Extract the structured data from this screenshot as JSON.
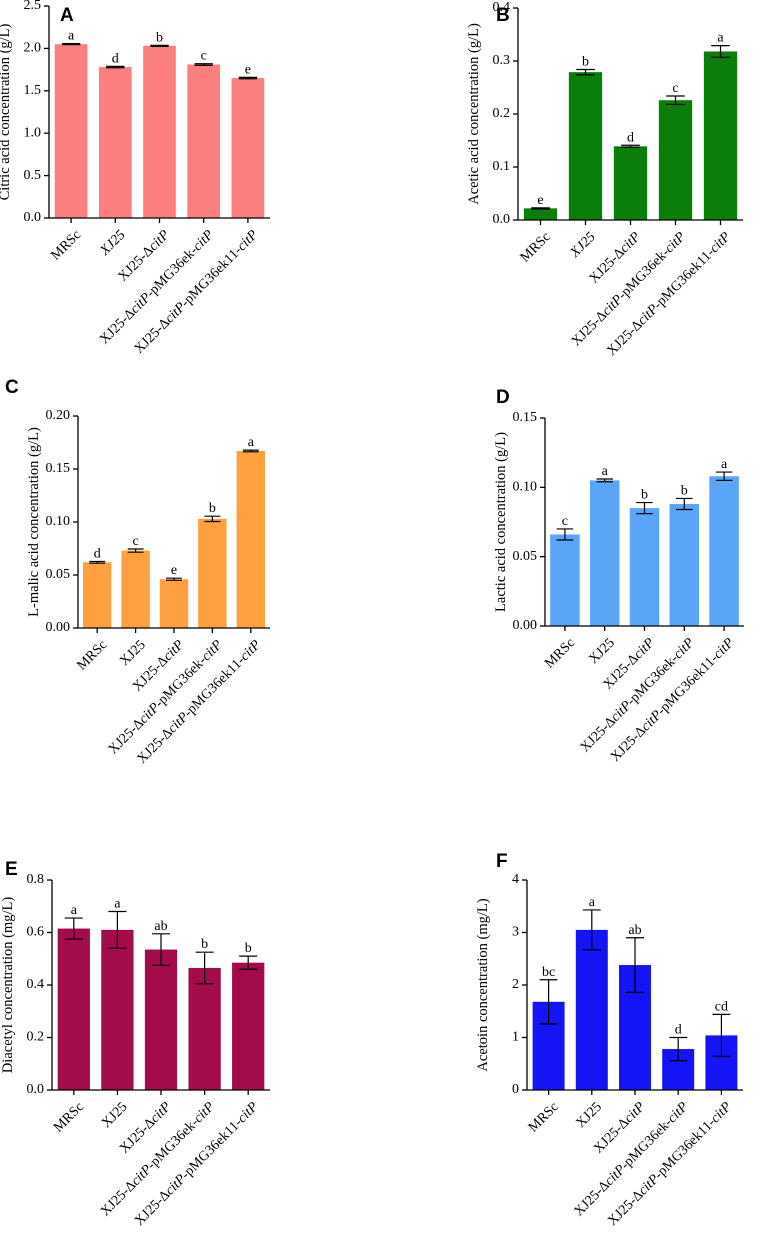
{
  "chart_data": [
    {
      "panel": "A",
      "type": "bar",
      "categories": [
        [
          {
            "t": "MRSc",
            "i": false
          }
        ],
        [
          {
            "t": "XJ25",
            "i": true
          }
        ],
        [
          {
            "t": "XJ25-Δ",
            "i": false
          },
          {
            "t": "citP",
            "i": true
          }
        ],
        [
          {
            "t": "XJ25-Δ",
            "i": false
          },
          {
            "t": "citP",
            "i": true
          },
          {
            "t": "-pMG36ek-",
            "i": false
          },
          {
            "t": "citP",
            "i": true
          }
        ],
        [
          {
            "t": "XJ25-Δ",
            "i": false
          },
          {
            "t": "citP",
            "i": true
          },
          {
            "t": "-pMG36ek11-",
            "i": false
          },
          {
            "t": "citP",
            "i": true
          }
        ]
      ],
      "values": [
        2.05,
        1.78,
        2.03,
        1.81,
        1.65
      ],
      "errors": [
        0.006,
        0.008,
        0.006,
        0.009,
        0.008
      ],
      "letters": [
        "a",
        "d",
        "b",
        "c",
        "e"
      ],
      "ylabel": "Citric acid concentration (g/L)",
      "ylim": [
        0,
        2.5
      ],
      "yticks": [
        "0.0",
        "0.5",
        "1.0",
        "1.5",
        "2.0",
        "2.5"
      ],
      "color": "#fb7f7f"
    },
    {
      "panel": "B",
      "type": "bar",
      "categories": [
        [
          {
            "t": "MRSc",
            "i": false
          }
        ],
        [
          {
            "t": "XJ25",
            "i": true
          }
        ],
        [
          {
            "t": "XJ25-Δ",
            "i": false
          },
          {
            "t": "citP",
            "i": true
          }
        ],
        [
          {
            "t": "XJ25-Δ",
            "i": false
          },
          {
            "t": "citP",
            "i": true
          },
          {
            "t": "-pMG36ek-",
            "i": false
          },
          {
            "t": "citP",
            "i": true
          }
        ],
        [
          {
            "t": "XJ25-Δ",
            "i": false
          },
          {
            "t": "citP",
            "i": true
          },
          {
            "t": "-pMG36ek11-",
            "i": false
          },
          {
            "t": "citP",
            "i": true
          }
        ]
      ],
      "values": [
        0.022,
        0.279,
        0.139,
        0.226,
        0.318
      ],
      "errors": [
        0.001,
        0.005,
        0.002,
        0.008,
        0.011
      ],
      "letters": [
        "e",
        "b",
        "d",
        "c",
        "a"
      ],
      "ylabel": "Acetic acid concentration (g/L)",
      "ylim": [
        0,
        0.4
      ],
      "yticks": [
        "0.0",
        "0.1",
        "0.2",
        "0.3",
        "0.4"
      ],
      "color": "#0a7d0a"
    },
    {
      "panel": "C",
      "type": "bar",
      "categories": [
        [
          {
            "t": "MRSc",
            "i": false
          }
        ],
        [
          {
            "t": "XJ25",
            "i": false
          }
        ],
        [
          {
            "t": "XJ25-Δ",
            "i": false
          },
          {
            "t": "citP",
            "i": true
          }
        ],
        [
          {
            "t": "XJ25-Δ",
            "i": false
          },
          {
            "t": "citP",
            "i": true
          },
          {
            "t": "-pMG36ek-",
            "i": false
          },
          {
            "t": "citP",
            "i": true
          }
        ],
        [
          {
            "t": "XJ25-Δ",
            "i": false
          },
          {
            "t": "citP",
            "i": true
          },
          {
            "t": "-pMG36ek11-",
            "i": false
          },
          {
            "t": "citP",
            "i": true
          }
        ]
      ],
      "values": [
        0.062,
        0.073,
        0.046,
        0.103,
        0.167
      ],
      "errors": [
        0.0008,
        0.0015,
        0.001,
        0.0025,
        0.0008
      ],
      "letters": [
        "d",
        "c",
        "e",
        "b",
        "a"
      ],
      "ylabel": "L-malic acid concentration (g/L)",
      "ylim": [
        0,
        0.2
      ],
      "yticks": [
        "0.00",
        "0.05",
        "0.10",
        "0.15",
        "0.20"
      ],
      "color": "#ffa040"
    },
    {
      "panel": "D",
      "type": "bar",
      "categories": [
        [
          {
            "t": "MRSc",
            "i": false
          }
        ],
        [
          {
            "t": "XJ25",
            "i": false
          }
        ],
        [
          {
            "t": "XJ25-Δ",
            "i": false
          },
          {
            "t": "citP",
            "i": true
          }
        ],
        [
          {
            "t": "XJ25-Δ",
            "i": false
          },
          {
            "t": "citP",
            "i": true
          },
          {
            "t": "-pMG36ek-",
            "i": false
          },
          {
            "t": "citP",
            "i": true
          }
        ],
        [
          {
            "t": "XJ25-Δ",
            "i": false
          },
          {
            "t": "citP",
            "i": true
          },
          {
            "t": "-pMG36ek11-",
            "i": false
          },
          {
            "t": "citP",
            "i": true
          }
        ]
      ],
      "values": [
        0.066,
        0.105,
        0.085,
        0.088,
        0.108
      ],
      "errors": [
        0.004,
        0.001,
        0.004,
        0.004,
        0.003
      ],
      "letters": [
        "c",
        "a",
        "b",
        "b",
        "a"
      ],
      "ylabel": "Lactic acid concentration (g/L)",
      "ylim": [
        0,
        0.15
      ],
      "yticks": [
        "0.00",
        "0.05",
        "0.10",
        "0.15"
      ],
      "color": "#5aa5f7"
    },
    {
      "panel": "E",
      "type": "bar",
      "categories": [
        [
          {
            "t": "MRSc",
            "i": false
          }
        ],
        [
          {
            "t": "XJ25",
            "i": false
          }
        ],
        [
          {
            "t": "XJ25-Δ",
            "i": false
          },
          {
            "t": "citP",
            "i": true
          }
        ],
        [
          {
            "t": "XJ25-Δ",
            "i": false
          },
          {
            "t": "citP",
            "i": true
          },
          {
            "t": "-pMG36ek-",
            "i": false
          },
          {
            "t": "citP",
            "i": true
          }
        ],
        [
          {
            "t": "XJ25-Δ",
            "i": false
          },
          {
            "t": "citP",
            "i": true
          },
          {
            "t": "-pMG36ek11-",
            "i": false
          },
          {
            "t": "citP",
            "i": true
          }
        ]
      ],
      "values": [
        0.615,
        0.61,
        0.535,
        0.465,
        0.485
      ],
      "errors": [
        0.04,
        0.07,
        0.06,
        0.06,
        0.025
      ],
      "letters": [
        "a",
        "a",
        "ab",
        "b",
        "b"
      ],
      "ylabel": "Diacetyl concentration (mg/L)",
      "ylim": [
        0,
        0.8
      ],
      "yticks": [
        "0.0",
        "0.2",
        "0.4",
        "0.6",
        "0.8"
      ],
      "color": "#a30b4b"
    },
    {
      "panel": "F",
      "type": "bar",
      "categories": [
        [
          {
            "t": "MRSc",
            "i": false
          }
        ],
        [
          {
            "t": "XJ25",
            "i": false
          }
        ],
        [
          {
            "t": "XJ25-Δ",
            "i": false
          },
          {
            "t": "citP",
            "i": true
          }
        ],
        [
          {
            "t": "XJ25-Δ",
            "i": false
          },
          {
            "t": "citP",
            "i": true
          },
          {
            "t": "-pMG36ek-",
            "i": false
          },
          {
            "t": "citP",
            "i": true
          }
        ],
        [
          {
            "t": "XJ25-Δ",
            "i": false
          },
          {
            "t": "citP",
            "i": true
          },
          {
            "t": "-pMG36ek11-",
            "i": false
          },
          {
            "t": "citP",
            "i": true
          }
        ]
      ],
      "values": [
        1.68,
        3.05,
        2.38,
        0.78,
        1.04
      ],
      "errors": [
        0.42,
        0.38,
        0.52,
        0.22,
        0.4
      ],
      "letters": [
        "bc",
        "a",
        "ab",
        "d",
        "cd"
      ],
      "ylabel": "Acetoin concentration (mg/L)",
      "ylim": [
        0,
        4
      ],
      "yticks": [
        "0",
        "1",
        "2",
        "3",
        "4"
      ],
      "color": "#1414f5"
    }
  ]
}
